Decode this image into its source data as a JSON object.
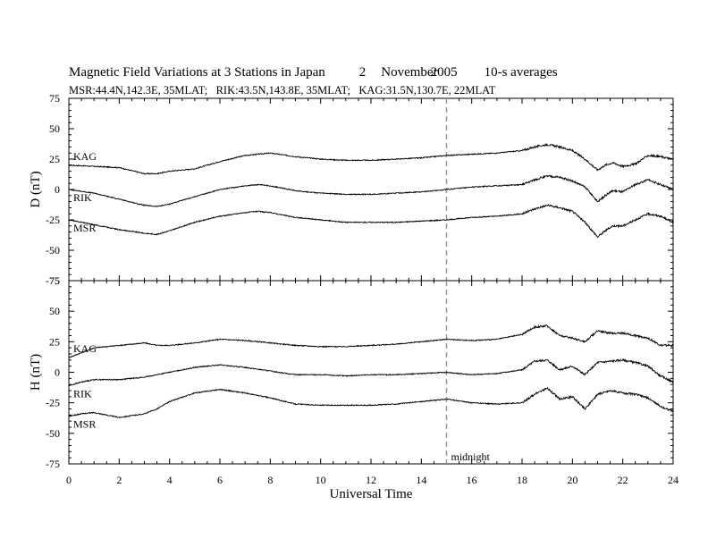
{
  "header": {
    "title_main": "Magnetic Field Variations at 3 Stations in Japan",
    "date_day": "2",
    "date_month": "November",
    "date_year": "2005",
    "averaging": "10-s averages",
    "stations_line": "MSR:44.4N,142.3E, 35MLAT;   RIK:43.5N,143.8E, 35MLAT;   KAG:31.5N,130.7E, 22MLAT"
  },
  "chart_data": {
    "type": "line",
    "xlabel": "Universal Time",
    "xlim": [
      0,
      24
    ],
    "xticks": [
      0,
      2,
      4,
      6,
      8,
      10,
      12,
      14,
      16,
      18,
      20,
      22,
      24
    ],
    "annotation": {
      "text": "midnight",
      "x": 15,
      "style": "dashed vertical line"
    },
    "panels": [
      {
        "name": "D",
        "ylabel": "D (nT)",
        "ylim": [
          -75,
          75
        ],
        "yticks": [
          75,
          50,
          25,
          0,
          -25,
          -50,
          -75
        ],
        "series": [
          {
            "name": "KAG",
            "x": [
              0,
              1,
              2,
              3,
              3.5,
              4,
              5,
              6,
              7,
              7.5,
              8,
              9,
              10,
              11,
              12,
              13,
              14,
              15,
              16,
              17,
              18,
              18.5,
              19,
              19.5,
              20,
              20.5,
              21,
              21.3,
              21.6,
              22,
              22.5,
              23,
              23.5,
              24
            ],
            "y": [
              20,
              19,
              18,
              13,
              13,
              15,
              17,
              23,
              28,
              29,
              30,
              27,
              25,
              24,
              24,
              25,
              26,
              28,
              29,
              30,
              32,
              35,
              37,
              35,
              32,
              25,
              16,
              20,
              22,
              19,
              21,
              28,
              27,
              25
            ]
          },
          {
            "name": "RIK",
            "x": [
              0,
              1,
              2,
              3,
              3.5,
              4,
              5,
              6,
              7,
              7.5,
              8,
              9,
              10,
              11,
              12,
              13,
              14,
              15,
              16,
              17,
              18,
              18.5,
              19,
              19.5,
              20,
              20.5,
              21,
              21.3,
              21.6,
              22,
              22.5,
              23,
              23.5,
              24
            ],
            "y": [
              0,
              -3,
              -8,
              -13,
              -14,
              -12,
              -6,
              0,
              3,
              4,
              3,
              -1,
              -3,
              -4,
              -4,
              -3,
              -2,
              0,
              2,
              3,
              4,
              8,
              11,
              10,
              7,
              2,
              -10,
              -5,
              -1,
              -2,
              4,
              8,
              4,
              0
            ]
          },
          {
            "name": "MSR",
            "x": [
              0,
              1,
              2,
              3,
              3.5,
              4,
              5,
              6,
              7,
              7.5,
              8,
              9,
              10,
              11,
              12,
              13,
              14,
              15,
              16,
              17,
              18,
              18.5,
              19,
              19.5,
              20,
              20.5,
              21,
              21.3,
              21.6,
              22,
              22.5,
              23,
              23.5,
              24
            ],
            "y": [
              -25,
              -29,
              -33,
              -36,
              -37,
              -34,
              -27,
              -22,
              -19,
              -18,
              -19,
              -23,
              -25,
              -27,
              -27,
              -27,
              -26,
              -25,
              -23,
              -22,
              -20,
              -16,
              -13,
              -15,
              -18,
              -27,
              -39,
              -34,
              -30,
              -30,
              -25,
              -20,
              -22,
              -27
            ]
          }
        ]
      },
      {
        "name": "H",
        "ylabel": "H (nT)",
        "ylim": [
          -75,
          75
        ],
        "yticks": [
          75,
          50,
          25,
          0,
          -25,
          -50,
          -75
        ],
        "series": [
          {
            "name": "KAG",
            "x": [
              0,
              0.5,
              1,
              2,
              3,
              3.5,
              4,
              5,
              6,
              7,
              8,
              9,
              10,
              11,
              12,
              13,
              14,
              15,
              16,
              17,
              18,
              18.5,
              19,
              19.5,
              20,
              20.5,
              21,
              21.5,
              22,
              22.5,
              23,
              23.5,
              24
            ],
            "y": [
              12,
              16,
              20,
              22,
              24,
              22,
              22,
              24,
              27,
              26,
              24,
              22,
              21,
              21,
              22,
              23,
              25,
              27,
              26,
              27,
              31,
              37,
              38,
              30,
              28,
              25,
              34,
              32,
              32,
              30,
              28,
              22,
              22
            ]
          },
          {
            "name": "RIK",
            "x": [
              0,
              0.5,
              1,
              2,
              3,
              3.5,
              4,
              5,
              6,
              7,
              8,
              9,
              10,
              11,
              12,
              13,
              14,
              15,
              16,
              17,
              18,
              18.5,
              19,
              19.5,
              20,
              20.5,
              21,
              21.5,
              22,
              22.5,
              23,
              23.5,
              24
            ],
            "y": [
              -11,
              -8,
              -6,
              -6,
              -4,
              -2,
              0,
              4,
              6,
              4,
              1,
              -2,
              -2,
              -3,
              -2,
              -2,
              -1,
              0,
              -2,
              -1,
              2,
              9,
              10,
              2,
              5,
              -2,
              8,
              9,
              10,
              8,
              5,
              -3,
              -8
            ]
          },
          {
            "name": "MSR",
            "x": [
              0,
              0.5,
              1,
              2,
              3,
              3.5,
              4,
              5,
              6,
              7,
              8,
              9,
              10,
              11,
              12,
              13,
              14,
              15,
              16,
              17,
              18,
              18.5,
              19,
              19.5,
              20,
              20.5,
              21,
              21.5,
              22,
              22.5,
              23,
              23.5,
              24
            ],
            "y": [
              -36,
              -34,
              -33,
              -37,
              -34,
              -30,
              -24,
              -17,
              -14,
              -17,
              -21,
              -26,
              -27,
              -27,
              -27,
              -26,
              -24,
              -22,
              -25,
              -26,
              -25,
              -18,
              -13,
              -22,
              -20,
              -30,
              -18,
              -15,
              -17,
              -18,
              -21,
              -28,
              -32
            ]
          }
        ]
      }
    ]
  }
}
